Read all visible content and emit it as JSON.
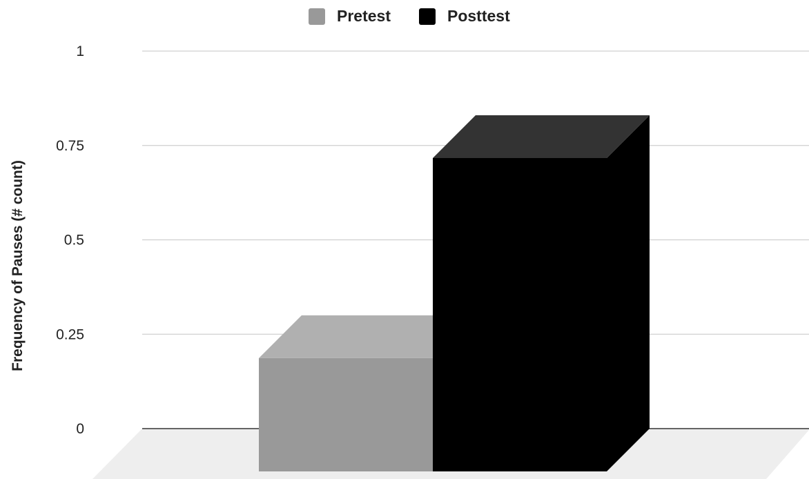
{
  "chart_data": {
    "type": "bar",
    "style": "3d",
    "title": "",
    "xlabel": "",
    "ylabel": "Frequency of Pauses (# count)",
    "ylim": [
      0,
      1
    ],
    "yticks": [
      "0",
      "0.25",
      "0.5",
      "0.75",
      "1"
    ],
    "grid": true,
    "legend_position": "top-center",
    "categories": [
      ""
    ],
    "series": [
      {
        "name": "Pretest",
        "values": [
          0.3
        ],
        "color": "#999999",
        "top_color": "#b0b0b0"
      },
      {
        "name": "Posttest",
        "values": [
          0.83
        ],
        "color": "#000000",
        "top_color": "#333333"
      }
    ]
  }
}
